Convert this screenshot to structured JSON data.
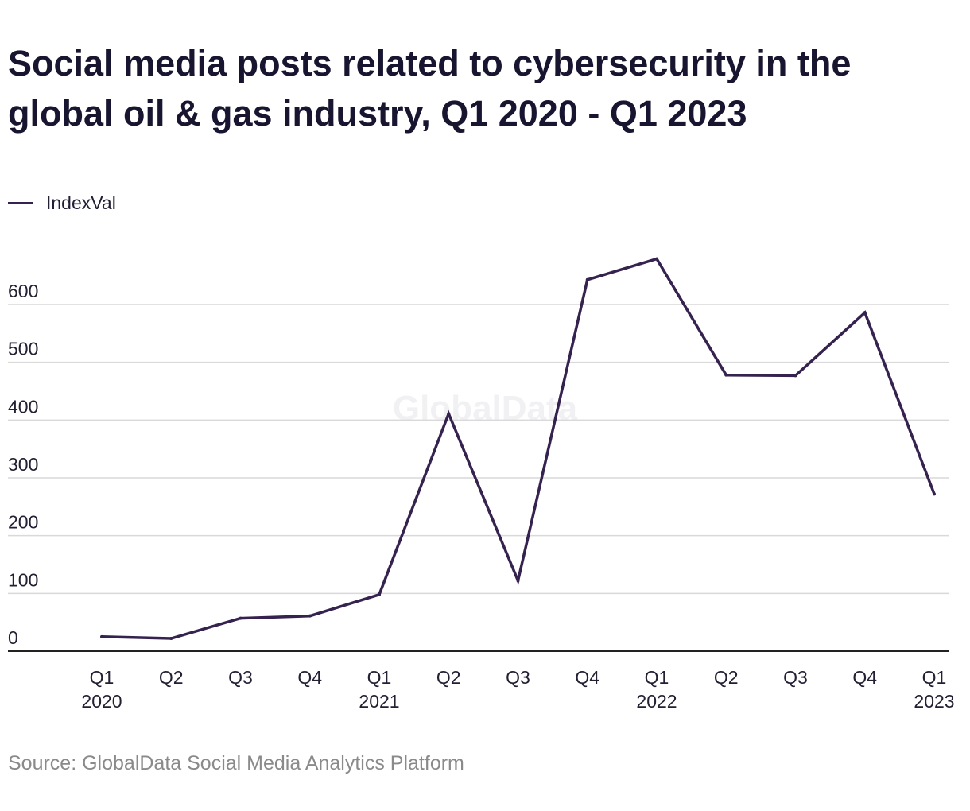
{
  "title": "Social media posts related to cybersecurity in the global oil & gas industry, Q1 2020 - Q1 2023",
  "legend": {
    "label": "IndexVal"
  },
  "source": "Source: GlobalData Social Media Analytics Platform",
  "watermark": "GlobalData",
  "colors": {
    "line": "#35224f",
    "grid": "#d9d9d9",
    "axis": "#222222",
    "text": "#222033"
  },
  "chart_data": {
    "type": "line",
    "title": "Social media posts related to cybersecurity in the global oil & gas industry, Q1 2020 - Q1 2023",
    "xlabel": "",
    "ylabel": "",
    "categories": [
      [
        "Q1",
        "2020"
      ],
      [
        "Q2",
        ""
      ],
      [
        "Q3",
        ""
      ],
      [
        "Q4",
        ""
      ],
      [
        "Q1",
        "2021"
      ],
      [
        "Q2",
        ""
      ],
      [
        "Q3",
        ""
      ],
      [
        "Q4",
        ""
      ],
      [
        "Q1",
        "2022"
      ],
      [
        "Q2",
        ""
      ],
      [
        "Q3",
        ""
      ],
      [
        "Q4",
        ""
      ],
      [
        "Q1",
        "2023"
      ]
    ],
    "series": [
      {
        "name": "IndexVal",
        "values": [
          25,
          22,
          57,
          61,
          98,
          411,
          122,
          643,
          679,
          478,
          477,
          586,
          272
        ]
      }
    ],
    "yticks": [
      0,
      100,
      200,
      300,
      400,
      500,
      600
    ],
    "ylim": [
      0,
      700
    ],
    "grid": true,
    "legend_position": "top-left"
  }
}
